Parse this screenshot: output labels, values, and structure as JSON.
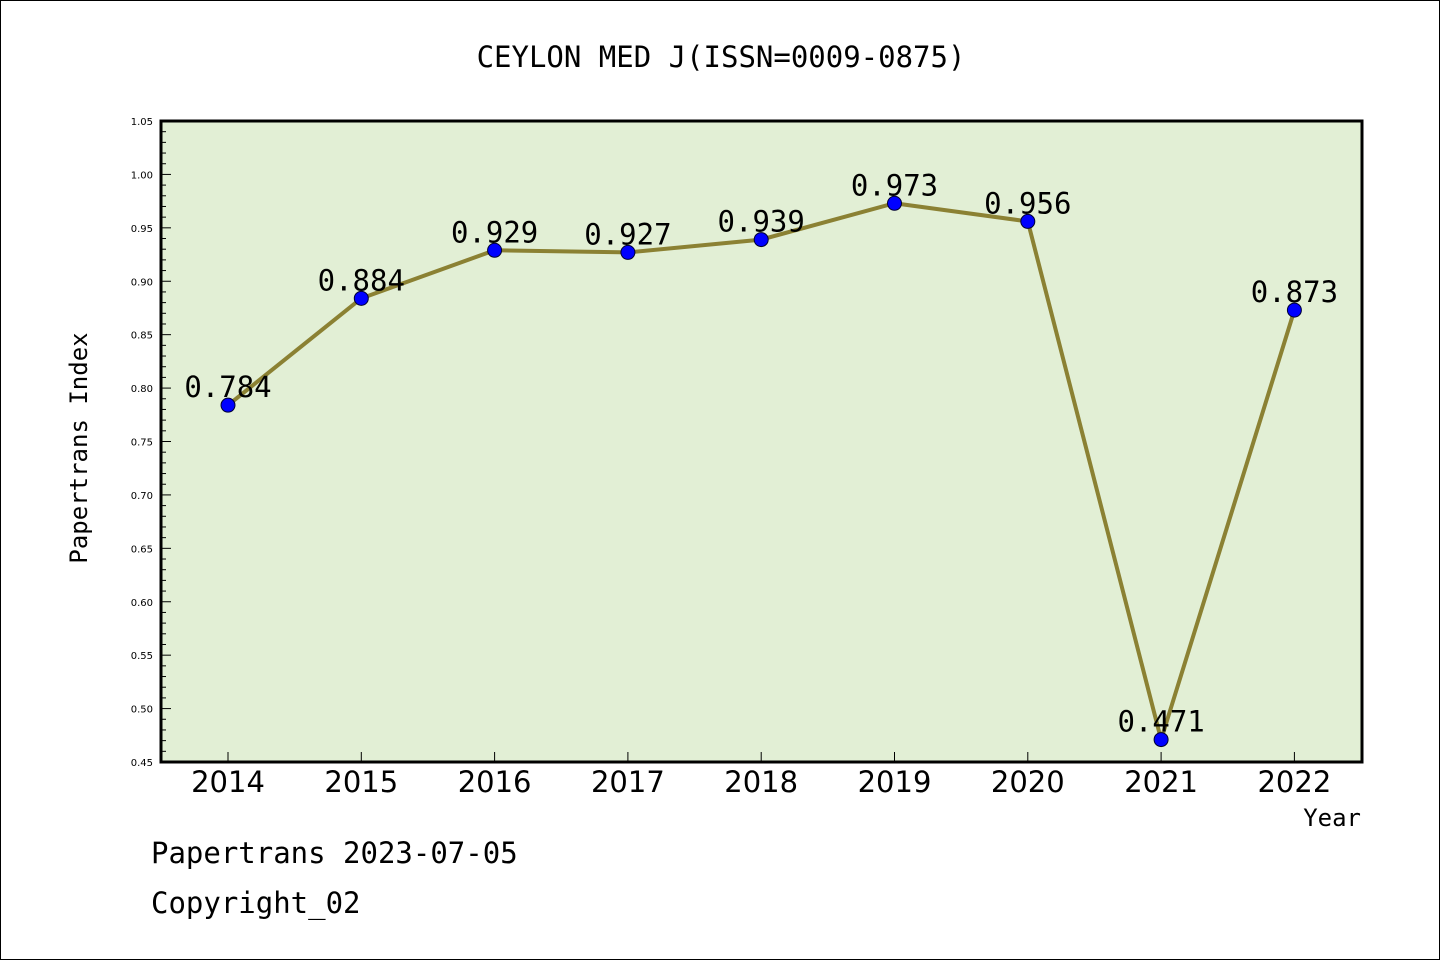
{
  "chart_data": {
    "type": "line",
    "title": "CEYLON MED J(ISSN=0009-0875)",
    "xlabel": "Year",
    "ylabel": "Papertrans Index",
    "categories": [
      "2014",
      "2015",
      "2016",
      "2017",
      "2018",
      "2019",
      "2020",
      "2021",
      "2022"
    ],
    "series": [
      {
        "values": [
          0.784,
          0.884,
          0.929,
          0.927,
          0.939,
          0.973,
          0.956,
          0.471,
          0.873
        ],
        "labels": [
          "0.784",
          "0.884",
          "0.929",
          "0.927",
          "0.939",
          "0.973",
          "0.956",
          "0.471",
          "0.873"
        ]
      }
    ],
    "ylim": [
      0.45,
      1.05
    ],
    "yticks": [
      "0.45",
      "0.50",
      "0.55",
      "0.60",
      "0.65",
      "0.70",
      "0.75",
      "0.80",
      "0.85",
      "0.90",
      "0.95",
      "1.00",
      "1.05"
    ],
    "grid": false,
    "colors": {
      "line": "#8b8133",
      "marker": "#0000ff",
      "plot_background": "#e2efd5",
      "axes": "#000000"
    }
  },
  "footer": {
    "source": "Papertrans 2023-07-05",
    "copyright": "Copyright_02"
  }
}
